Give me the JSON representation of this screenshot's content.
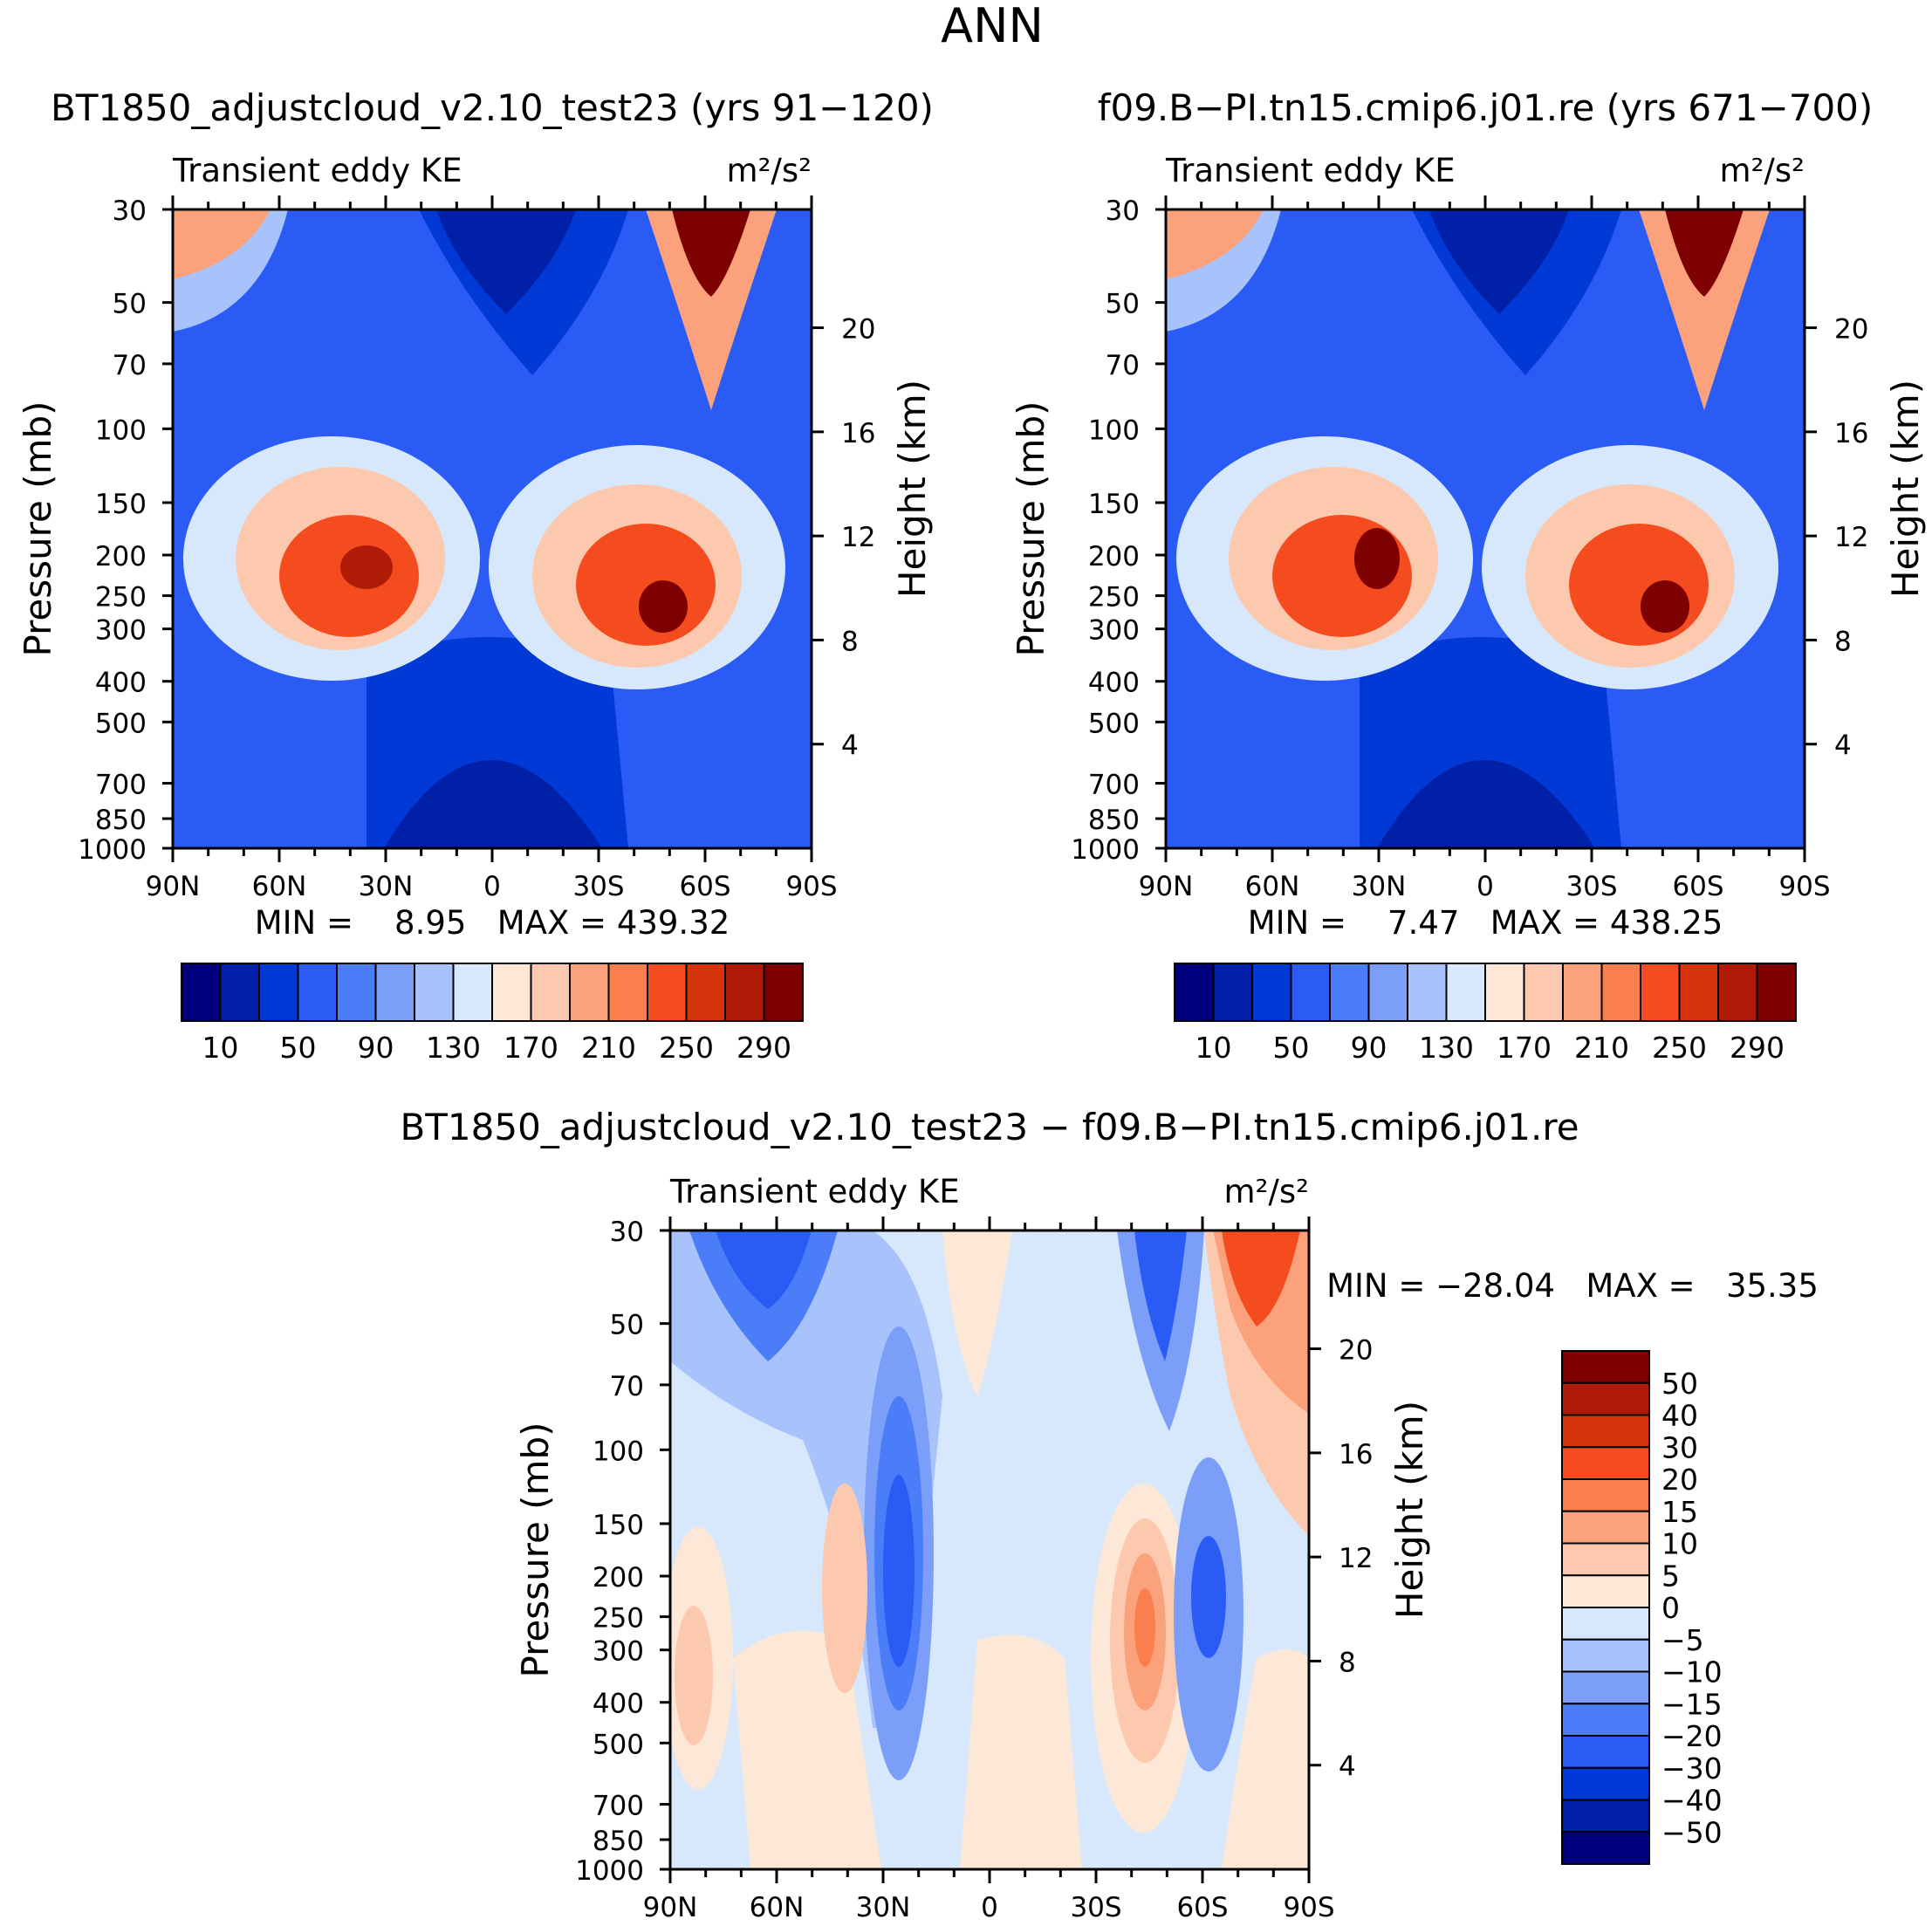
{
  "page": {
    "title": "ANN",
    "diff_title": "BT1850_adjustcloud_v2.10_test23 − f09.B−PI.tn15.cmip6.j01.re"
  },
  "chart_data": [
    {
      "type": "heatmap",
      "id": "p1",
      "title": "BT1850_adjustcloud_v2.10_test23 (yrs 91−120)",
      "left_label": "Transient eddy KE",
      "right_label": "m²/s²",
      "ylabel": "Pressure (mb)",
      "ylabel_right": "Height (km)",
      "yticks": [
        "30",
        "50",
        "70",
        "100",
        "150",
        "200",
        "250",
        "300",
        "400",
        "500",
        "700",
        "850",
        "1000"
      ],
      "yticks_right": [
        "20",
        "16",
        "12",
        "8",
        "4"
      ],
      "xticks": [
        "90N",
        "60N",
        "30N",
        "0",
        "30S",
        "60S",
        "90S"
      ],
      "stats": "MIN =    8.95   MAX = 439.32",
      "colorbar_labels": [
        "10",
        "50",
        "90",
        "130",
        "170",
        "210",
        "250",
        "290"
      ]
    },
    {
      "type": "heatmap",
      "id": "p2",
      "title": "f09.B−PI.tn15.cmip6.j01.re (yrs 671−700)",
      "left_label": "Transient eddy KE",
      "right_label": "m²/s²",
      "ylabel": "Pressure (mb)",
      "ylabel_right": "Height (km)",
      "yticks": [
        "30",
        "50",
        "70",
        "100",
        "150",
        "200",
        "250",
        "300",
        "400",
        "500",
        "700",
        "850",
        "1000"
      ],
      "yticks_right": [
        "20",
        "16",
        "12",
        "8",
        "4"
      ],
      "xticks": [
        "90N",
        "60N",
        "30N",
        "0",
        "30S",
        "60S",
        "90S"
      ],
      "stats": "MIN =    7.47   MAX = 438.25",
      "colorbar_labels": [
        "10",
        "50",
        "90",
        "130",
        "170",
        "210",
        "250",
        "290"
      ]
    },
    {
      "type": "heatmap",
      "id": "p3",
      "title": "BT1850_adjustcloud_v2.10_test23 − f09.B−PI.tn15.cmip6.j01.re",
      "left_label": "Transient eddy KE",
      "right_label": "m²/s²",
      "ylabel": "Pressure (mb)",
      "ylabel_right": "Height (km)",
      "yticks": [
        "30",
        "50",
        "70",
        "100",
        "150",
        "200",
        "250",
        "300",
        "400",
        "500",
        "700",
        "850",
        "1000"
      ],
      "yticks_right": [
        "20",
        "16",
        "12",
        "8",
        "4"
      ],
      "xticks": [
        "90N",
        "60N",
        "30N",
        "0",
        "30S",
        "60S",
        "90S"
      ],
      "stats": "MIN = −28.04   MAX =   35.35",
      "colorbar_labels": [
        "50",
        "40",
        "30",
        "20",
        "15",
        "10",
        "5",
        "0",
        "−5",
        "−10",
        "−15",
        "−20",
        "−30",
        "−40",
        "−50"
      ]
    }
  ],
  "colors": {
    "abs_scale": [
      "#00007f",
      "#0020a8",
      "#0039d6",
      "#2a5cf5",
      "#4b7df8",
      "#7b9ff9",
      "#a8c2fb",
      "#d7e7fc",
      "#fde8d8",
      "#fcc9ae",
      "#fba27c",
      "#fb7e4e",
      "#f54c1f",
      "#d8340c",
      "#b01b08",
      "#7f0000"
    ],
    "diff_scale": [
      "#7f0000",
      "#b01b08",
      "#d8340c",
      "#f54c1f",
      "#fb7e4e",
      "#fba27c",
      "#fcc9ae",
      "#fde8d8",
      "#d7e7fc",
      "#a8c2fb",
      "#7b9ff9",
      "#4b7df8",
      "#2a5cf5",
      "#0039d6",
      "#0020a8",
      "#00007f"
    ]
  }
}
